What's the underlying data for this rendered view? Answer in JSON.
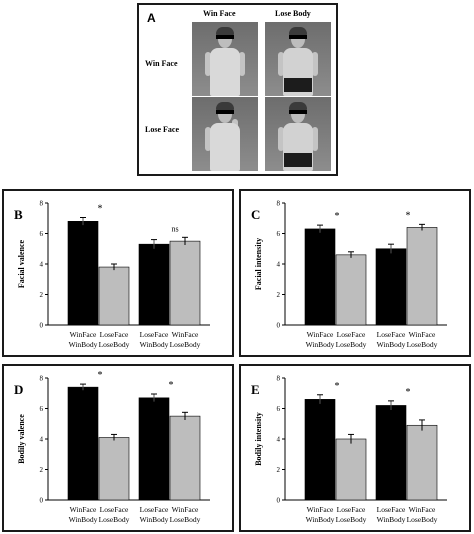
{
  "panel_a": {
    "letter": "A",
    "columns": [
      "Win Face",
      "Lose Body"
    ],
    "rows": [
      "Win Face",
      "Lose Face"
    ],
    "photos": [
      {
        "row": 0,
        "col": 0,
        "shirt": "light",
        "shorts": "skirt"
      },
      {
        "row": 0,
        "col": 1,
        "shirt": "striped",
        "shorts": "dark"
      },
      {
        "row": 1,
        "col": 0,
        "shirt": "light",
        "shorts": "skirt"
      },
      {
        "row": 1,
        "col": 1,
        "shirt": "striped",
        "shorts": "dark"
      }
    ]
  },
  "chart_data": [
    {
      "type": "bar",
      "panel": "B",
      "ylabel": "Facial valence",
      "ylim": [
        0,
        8
      ],
      "yticks": [
        0,
        2,
        4,
        6,
        8
      ],
      "categories": [
        [
          "WinFace",
          "WinBody"
        ],
        [
          "LoseFace",
          "LoseBody"
        ],
        [
          "LoseFace",
          "WinBody"
        ],
        [
          "WinFace",
          "LoseBody"
        ]
      ],
      "values": [
        6.8,
        3.8,
        5.3,
        5.5
      ],
      "errors": [
        0.25,
        0.2,
        0.3,
        0.25
      ],
      "colors": [
        "#000000",
        "#bdbdbd",
        "#000000",
        "#bdbdbd"
      ],
      "annotations": [
        {
          "pair": 0,
          "text": "*"
        },
        {
          "pair": 1,
          "text": "ns"
        }
      ]
    },
    {
      "type": "bar",
      "panel": "C",
      "ylabel": "Facial intensity",
      "ylim": [
        0,
        8
      ],
      "yticks": [
        0,
        2,
        4,
        6,
        8
      ],
      "categories": [
        [
          "WinFace",
          "WinBody"
        ],
        [
          "LoseFace",
          "LoseBody"
        ],
        [
          "LoseFace",
          "WinBody"
        ],
        [
          "WinFace",
          "LoseBody"
        ]
      ],
      "values": [
        6.3,
        4.6,
        5.0,
        6.4
      ],
      "errors": [
        0.25,
        0.2,
        0.3,
        0.2
      ],
      "colors": [
        "#000000",
        "#bdbdbd",
        "#000000",
        "#bdbdbd"
      ],
      "annotations": [
        {
          "pair": 0,
          "text": "*"
        },
        {
          "pair": 1,
          "text": "*"
        }
      ]
    },
    {
      "type": "bar",
      "panel": "D",
      "ylabel": "Bodily valence",
      "ylim": [
        0,
        8
      ],
      "yticks": [
        0,
        2,
        4,
        6,
        8
      ],
      "categories": [
        [
          "WinFace",
          "WinBody"
        ],
        [
          "LoseFace",
          "LoseBody"
        ],
        [
          "LoseFace",
          "WinBody"
        ],
        [
          "WinFace",
          "LoseBody"
        ]
      ],
      "values": [
        7.4,
        4.1,
        6.7,
        5.5
      ],
      "errors": [
        0.2,
        0.2,
        0.25,
        0.25
      ],
      "colors": [
        "#000000",
        "#bdbdbd",
        "#000000",
        "#bdbdbd"
      ],
      "annotations": [
        {
          "pair": 0,
          "text": "*"
        },
        {
          "pair": 1,
          "text": "*"
        }
      ]
    },
    {
      "type": "bar",
      "panel": "E",
      "ylabel": "Bodily intensity",
      "ylim": [
        0,
        8
      ],
      "yticks": [
        0,
        2,
        4,
        6,
        8
      ],
      "categories": [
        [
          "WinFace",
          "WinBody"
        ],
        [
          "LoseFace",
          "LoseBody"
        ],
        [
          "LoseFace",
          "WinBody"
        ],
        [
          "WinFace",
          "LoseBody"
        ]
      ],
      "values": [
        6.6,
        4.0,
        6.2,
        4.9
      ],
      "errors": [
        0.3,
        0.3,
        0.3,
        0.35
      ],
      "colors": [
        "#000000",
        "#bdbdbd",
        "#000000",
        "#bdbdbd"
      ],
      "annotations": [
        {
          "pair": 0,
          "text": "*"
        },
        {
          "pair": 1,
          "text": "*"
        }
      ]
    }
  ]
}
